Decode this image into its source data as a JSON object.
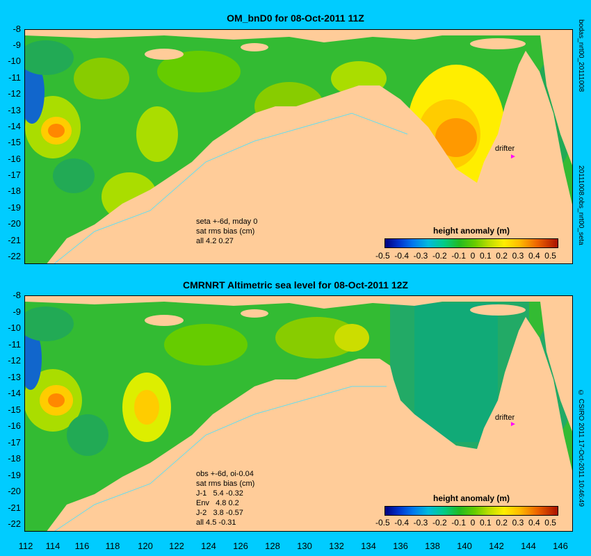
{
  "top_panel": {
    "title": "OM_bnD0 for 08-Oct-2011 11Z",
    "notes": [
      "seta +-6d, mday 0",
      "sat rms bias (cm)",
      "all 4.2 0.27"
    ],
    "side_label": "bodas_nrt00_20111008",
    "side_label_lower": "20111008.obs_nrt00_seta",
    "drifter_label": "drifter"
  },
  "bottom_panel": {
    "title": "CMRNRT Altimetric sea level  for 08-Oct-2011 12Z",
    "notes": [
      "obs +-6d, oi-0.04",
      "sat rms bias (cm)",
      "J-1   5.4 -0.32",
      "Env   4.8 0.2",
      "J-2   3.8 -0.57",
      "all 4.5 -0.31"
    ],
    "side_label": "© CSIRO 2011  17-Oct-2011 10:46:49",
    "drifter_label": "drifter"
  },
  "colorbar": {
    "title": "height anomaly (m)",
    "ticks": [
      "-0.5",
      "-0.4",
      "-0.3",
      "-0.2",
      "-0.1",
      "0",
      "0.1",
      "0.2",
      "0.3",
      "0.4",
      "0.5"
    ]
  },
  "y_ticks": [
    "-8",
    "-9",
    "-10",
    "-11",
    "-12",
    "-13",
    "-14",
    "-15",
    "-16",
    "-17",
    "-18",
    "-19",
    "-20",
    "-21",
    "-22"
  ],
  "x_ticks": [
    "112",
    "114",
    "116",
    "118",
    "120",
    "122",
    "124",
    "126",
    "128",
    "130",
    "132",
    "134",
    "136",
    "138",
    "140",
    "142",
    "144",
    "146"
  ],
  "colors": {
    "background": "#00ccff",
    "land": "#ffcc99",
    "drifter_marker": "#ff00ff"
  }
}
